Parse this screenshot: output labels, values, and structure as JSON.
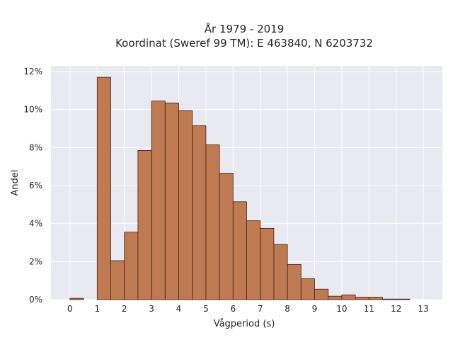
{
  "chart_data": {
    "type": "bar",
    "title_line1": "År 1979 - 2019",
    "title_line2": "Koordinat (Sweref 99 TM): E 463840, N 6203732",
    "xlabel": "Vågperiod (s)",
    "ylabel": "Andel",
    "xlim": [
      -0.7,
      13.7
    ],
    "ylim": [
      0,
      12.3
    ],
    "x_ticks": [
      0,
      1,
      2,
      3,
      4,
      5,
      6,
      7,
      8,
      9,
      10,
      11,
      12,
      13
    ],
    "y_ticks": [
      0,
      2,
      4,
      6,
      8,
      10,
      12
    ],
    "y_tick_suffix": "%",
    "grid": true,
    "bar_color": "#c07a52",
    "bar_edge_color": "#3b2214",
    "background_color": "#e9e9f1",
    "bin_width": 0.5,
    "bins": [
      {
        "start": 0.0,
        "value": 0.07
      },
      {
        "start": 0.5,
        "value": 0.0
      },
      {
        "start": 1.0,
        "value": 11.7
      },
      {
        "start": 1.5,
        "value": 2.05
      },
      {
        "start": 2.0,
        "value": 3.55
      },
      {
        "start": 2.5,
        "value": 7.85
      },
      {
        "start": 3.0,
        "value": 10.45
      },
      {
        "start": 3.5,
        "value": 10.35
      },
      {
        "start": 4.0,
        "value": 9.95
      },
      {
        "start": 4.5,
        "value": 9.15
      },
      {
        "start": 5.0,
        "value": 8.15
      },
      {
        "start": 5.5,
        "value": 6.65
      },
      {
        "start": 6.0,
        "value": 5.15
      },
      {
        "start": 6.5,
        "value": 4.15
      },
      {
        "start": 7.0,
        "value": 3.75
      },
      {
        "start": 7.5,
        "value": 2.9
      },
      {
        "start": 8.0,
        "value": 1.85
      },
      {
        "start": 8.5,
        "value": 1.1
      },
      {
        "start": 9.0,
        "value": 0.55
      },
      {
        "start": 9.5,
        "value": 0.18
      },
      {
        "start": 10.0,
        "value": 0.25
      },
      {
        "start": 10.5,
        "value": 0.13
      },
      {
        "start": 11.0,
        "value": 0.13
      },
      {
        "start": 11.5,
        "value": 0.03
      },
      {
        "start": 12.0,
        "value": 0.03
      }
    ]
  }
}
